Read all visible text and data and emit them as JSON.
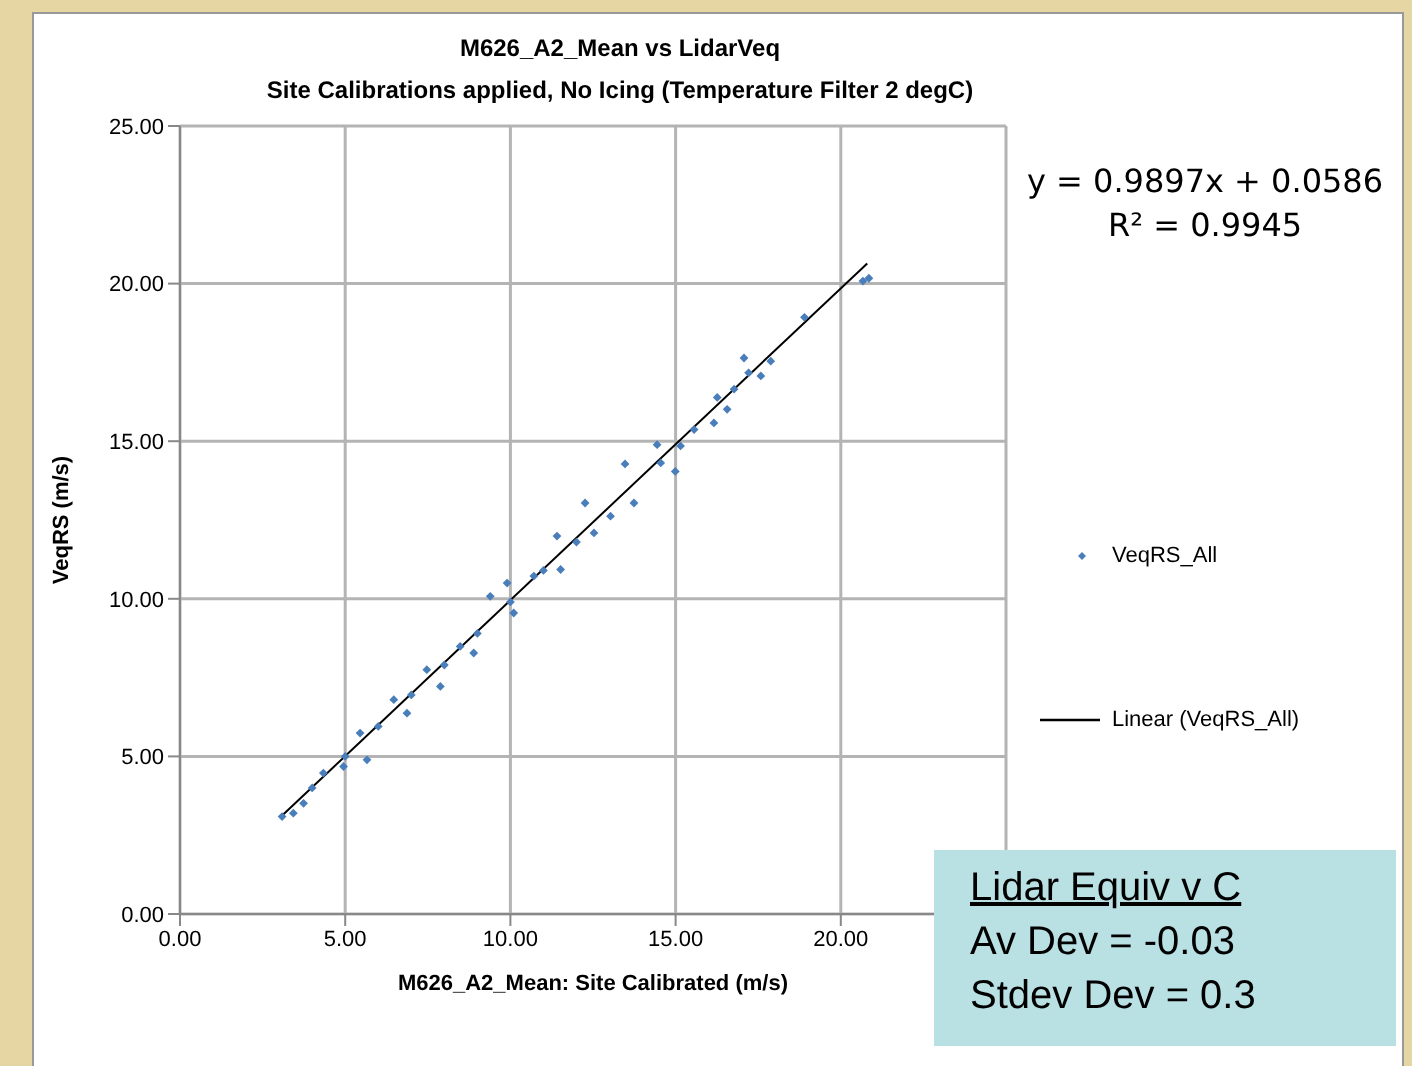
{
  "chart_data": {
    "type": "scatter",
    "title": "M626_A2_Mean vs LidarVeq",
    "subtitle": "Site Calibrations applied, No Icing (Temperature Filter 2 degC)",
    "xlabel": "M626_A2_Mean: Site Calibrated (m/s)",
    "ylabel": "VeqRS (m/s)",
    "xlim": [
      0,
      25
    ],
    "ylim": [
      0,
      25
    ],
    "xticks": [
      {
        "value": 0,
        "label": "0.00"
      },
      {
        "value": 5,
        "label": "5.00"
      },
      {
        "value": 10,
        "label": "10.00"
      },
      {
        "value": 15,
        "label": "15.00"
      },
      {
        "value": 20,
        "label": "20.00"
      },
      {
        "value": 25,
        "label": null
      }
    ],
    "yticks": [
      {
        "value": 0,
        "label": "0.00"
      },
      {
        "value": 5,
        "label": "5.00"
      },
      {
        "value": 10,
        "label": "10.00"
      },
      {
        "value": 15,
        "label": "15.00"
      },
      {
        "value": 20,
        "label": "20.00"
      },
      {
        "value": 25,
        "label": "25.00"
      }
    ],
    "grid": true,
    "legend": "right",
    "marker": "diamond",
    "series": [
      {
        "name": "VeqRS_All",
        "color": "#4a7ebb",
        "x": [
          3.09,
          3.43,
          3.74,
          4.0,
          4.34,
          4.95,
          5.0,
          5.66,
          5.45,
          6.0,
          6.47,
          6.87,
          7.0,
          7.47,
          7.88,
          8.0,
          8.48,
          8.89,
          9.0,
          9.39,
          9.9,
          10.0,
          10.1,
          10.71,
          11.0,
          11.41,
          11.52,
          12.0,
          12.26,
          12.53,
          13.03,
          13.47,
          13.74,
          14.44,
          14.55,
          14.99,
          15.15,
          15.56,
          16.16,
          16.26,
          16.56,
          16.77,
          17.07,
          17.21,
          17.58,
          17.88,
          18.9,
          20.67,
          20.85
        ],
        "values": [
          3.09,
          3.2,
          3.51,
          4.0,
          4.47,
          4.68,
          5.0,
          4.89,
          5.74,
          5.95,
          6.8,
          6.37,
          6.95,
          7.75,
          7.22,
          7.9,
          8.49,
          8.28,
          8.9,
          10.08,
          10.5,
          9.9,
          9.55,
          10.72,
          10.9,
          11.99,
          10.93,
          11.8,
          13.04,
          12.09,
          12.62,
          14.28,
          13.04,
          14.89,
          14.31,
          14.04,
          14.85,
          15.37,
          15.58,
          16.39,
          16.01,
          16.65,
          17.64,
          17.17,
          17.07,
          17.54,
          18.93,
          20.08,
          20.17
        ]
      },
      {
        "name": "Linear (VeqRS_All)",
        "type": "line",
        "marker": "none",
        "color": "#000000",
        "x": [
          3.1,
          20.8
        ],
        "values": [
          3.13,
          20.64
        ]
      }
    ],
    "annotations": [
      "y = 0.9897x + 0.0586",
      "R² = 0.9945",
      "Lidar Equiv v C",
      "Av Dev = -0.03",
      "Stdev Dev = 0.3"
    ]
  }
}
